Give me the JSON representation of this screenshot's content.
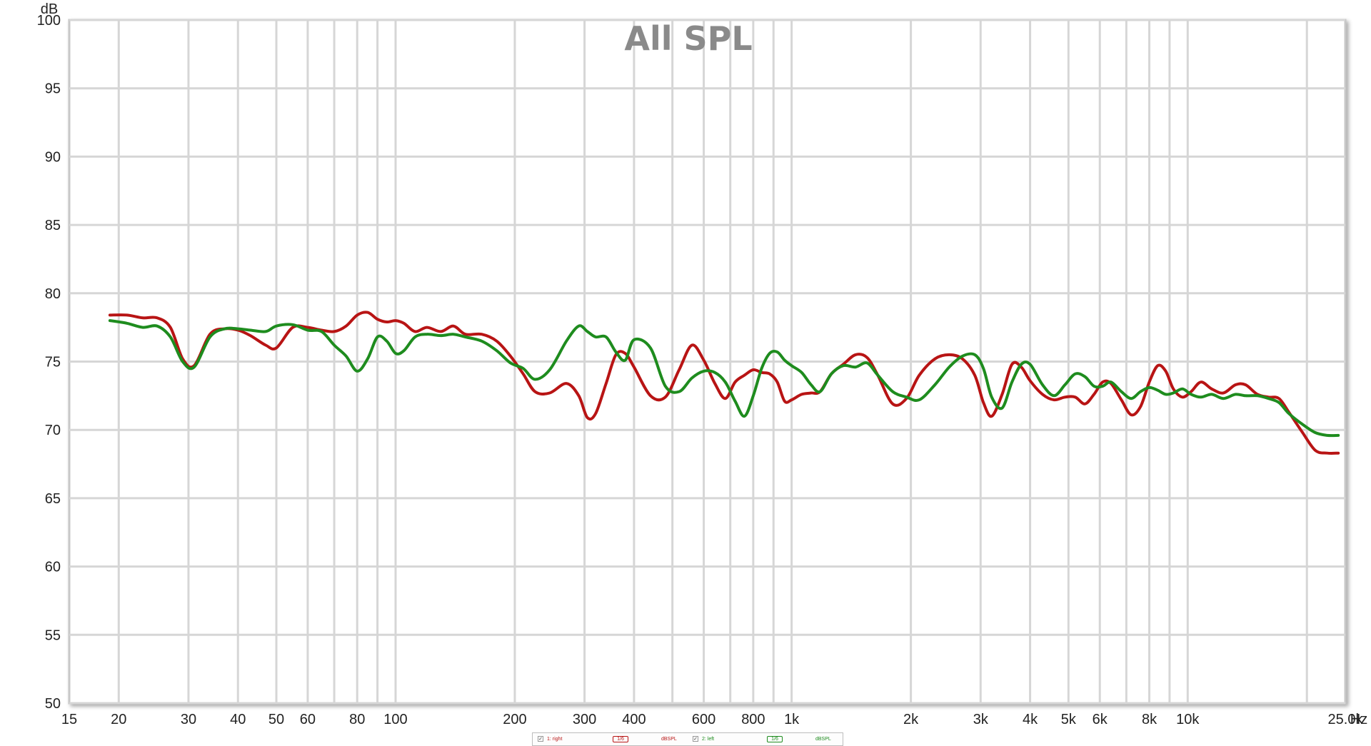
{
  "chart_data": {
    "type": "line",
    "title": "All SPL",
    "ylabel": "dB",
    "xlabel": "Hz",
    "x_scale": "log",
    "xlim": [
      15,
      25000
    ],
    "ylim": [
      50,
      100
    ],
    "grid": true,
    "y_ticks": [
      50,
      55,
      60,
      65,
      70,
      75,
      80,
      85,
      90,
      95,
      100
    ],
    "x_ticks": [
      {
        "value": 15,
        "label": "15"
      },
      {
        "value": 20,
        "label": "20"
      },
      {
        "value": 30,
        "label": "30"
      },
      {
        "value": 40,
        "label": "40"
      },
      {
        "value": 50,
        "label": "50"
      },
      {
        "value": 60,
        "label": "60"
      },
      {
        "value": 80,
        "label": "80"
      },
      {
        "value": 100,
        "label": "100"
      },
      {
        "value": 200,
        "label": "200"
      },
      {
        "value": 300,
        "label": "300"
      },
      {
        "value": 400,
        "label": "400"
      },
      {
        "value": 600,
        "label": "600"
      },
      {
        "value": 800,
        "label": "800"
      },
      {
        "value": 1000,
        "label": "1k"
      },
      {
        "value": 2000,
        "label": "2k"
      },
      {
        "value": 3000,
        "label": "3k"
      },
      {
        "value": 4000,
        "label": "4k"
      },
      {
        "value": 5000,
        "label": "5k"
      },
      {
        "value": 6000,
        "label": "6k"
      },
      {
        "value": 8000,
        "label": "8k"
      },
      {
        "value": 10000,
        "label": "10k"
      },
      {
        "value": 25000,
        "label": "25.0k"
      }
    ],
    "grid_x": [
      20,
      30,
      40,
      50,
      60,
      70,
      80,
      90,
      100,
      200,
      300,
      400,
      500,
      600,
      700,
      800,
      900,
      1000,
      2000,
      3000,
      4000,
      5000,
      6000,
      7000,
      8000,
      9000,
      10000,
      20000
    ],
    "series": [
      {
        "name": "1: right",
        "color": "#b81414",
        "x": [
          19,
          21,
          23,
          25,
          27,
          29,
          31,
          34,
          37,
          40,
          43,
          47,
          50,
          55,
          60,
          65,
          70,
          75,
          80,
          85,
          90,
          95,
          100,
          105,
          112,
          120,
          130,
          140,
          150,
          165,
          180,
          195,
          210,
          225,
          245,
          270,
          290,
          305,
          320,
          340,
          360,
          380,
          400,
          440,
          480,
          520,
          560,
          600,
          640,
          680,
          720,
          760,
          800,
          840,
          880,
          920,
          960,
          1000,
          1060,
          1120,
          1180,
          1260,
          1350,
          1450,
          1550,
          1650,
          1800,
          1950,
          2100,
          2300,
          2500,
          2700,
          2900,
          3050,
          3200,
          3400,
          3600,
          3800,
          4000,
          4300,
          4600,
          4900,
          5200,
          5500,
          5800,
          6100,
          6400,
          6800,
          7200,
          7600,
          8000,
          8400,
          8800,
          9200,
          9700,
          10200,
          10800,
          11500,
          12300,
          13200,
          14000,
          15000,
          16000,
          17000,
          18000,
          19500,
          21000,
          22500,
          24000
        ],
        "y": [
          78.4,
          78.4,
          78.2,
          78.2,
          77.5,
          75.2,
          74.7,
          77.0,
          77.4,
          77.3,
          76.9,
          76.2,
          76.0,
          77.5,
          77.5,
          77.3,
          77.2,
          77.6,
          78.4,
          78.6,
          78.1,
          77.9,
          78.0,
          77.8,
          77.2,
          77.5,
          77.2,
          77.6,
          77.0,
          77.0,
          76.5,
          75.4,
          74.1,
          72.8,
          72.7,
          73.4,
          72.5,
          70.9,
          71.2,
          73.4,
          75.5,
          75.6,
          74.6,
          72.5,
          72.4,
          74.4,
          76.2,
          75.1,
          73.4,
          72.3,
          73.5,
          74.0,
          74.4,
          74.2,
          74.1,
          73.5,
          72.1,
          72.2,
          72.6,
          72.7,
          72.8,
          74.1,
          74.8,
          75.5,
          75.3,
          74.0,
          71.9,
          72.3,
          74.0,
          75.2,
          75.5,
          75.2,
          74.0,
          72.0,
          71.0,
          72.6,
          74.8,
          74.6,
          73.6,
          72.6,
          72.2,
          72.4,
          72.4,
          71.9,
          72.6,
          73.5,
          73.4,
          72.2,
          71.1,
          71.7,
          73.5,
          74.7,
          74.3,
          73.0,
          72.4,
          72.8,
          73.5,
          73.0,
          72.7,
          73.3,
          73.3,
          72.6,
          72.4,
          72.3,
          71.3,
          69.8,
          68.5,
          68.3,
          68.3
        ]
      },
      {
        "name": "2: left",
        "color": "#1e8c1e",
        "x": [
          19,
          21,
          23,
          25,
          27,
          29,
          31,
          34,
          37,
          40,
          43,
          47,
          50,
          55,
          60,
          65,
          70,
          75,
          80,
          85,
          90,
          95,
          100,
          105,
          112,
          120,
          130,
          140,
          150,
          165,
          180,
          195,
          210,
          225,
          245,
          270,
          290,
          305,
          320,
          340,
          360,
          380,
          400,
          440,
          480,
          520,
          560,
          600,
          640,
          680,
          720,
          760,
          800,
          840,
          880,
          920,
          960,
          1000,
          1060,
          1120,
          1180,
          1260,
          1350,
          1450,
          1550,
          1650,
          1800,
          1950,
          2100,
          2300,
          2500,
          2700,
          2900,
          3050,
          3200,
          3400,
          3600,
          3800,
          4000,
          4300,
          4600,
          4900,
          5200,
          5500,
          5800,
          6100,
          6400,
          6800,
          7200,
          7600,
          8000,
          8400,
          8800,
          9200,
          9700,
          10200,
          10800,
          11500,
          12300,
          13200,
          14000,
          15000,
          16000,
          17000,
          18000,
          19500,
          21000,
          22500,
          24000
        ],
        "y": [
          78.0,
          77.8,
          77.5,
          77.6,
          76.8,
          75.0,
          74.6,
          76.8,
          77.4,
          77.4,
          77.3,
          77.2,
          77.6,
          77.7,
          77.3,
          77.2,
          76.2,
          75.4,
          74.3,
          75.2,
          76.8,
          76.5,
          75.6,
          75.8,
          76.8,
          77.0,
          76.9,
          77.0,
          76.8,
          76.5,
          75.8,
          74.9,
          74.5,
          73.7,
          74.4,
          76.5,
          77.6,
          77.2,
          76.8,
          76.8,
          75.7,
          75.1,
          76.6,
          76.0,
          73.2,
          72.8,
          73.8,
          74.3,
          74.2,
          73.5,
          72.1,
          71.0,
          72.5,
          74.5,
          75.6,
          75.7,
          75.1,
          74.7,
          74.2,
          73.3,
          72.8,
          74.1,
          74.7,
          74.6,
          74.9,
          74.0,
          72.8,
          72.4,
          72.2,
          73.3,
          74.6,
          75.4,
          75.5,
          74.5,
          72.4,
          71.6,
          73.5,
          74.8,
          74.8,
          73.3,
          72.5,
          73.3,
          74.1,
          73.9,
          73.2,
          73.2,
          73.5,
          72.8,
          72.3,
          72.8,
          73.1,
          72.9,
          72.6,
          72.7,
          73.0,
          72.6,
          72.4,
          72.6,
          72.3,
          72.6,
          72.5,
          72.5,
          72.3,
          72.0,
          71.2,
          70.4,
          69.8,
          69.6,
          69.6
        ]
      }
    ]
  },
  "legend": {
    "items": [
      {
        "label": "1: right",
        "smoothing": "1/6",
        "units": "dBSPL",
        "color": "#b81414"
      },
      {
        "label": "2: left",
        "smoothing": "1/6",
        "units": "dBSPL",
        "color": "#1e8c1e"
      }
    ],
    "check_mark": "✓"
  }
}
